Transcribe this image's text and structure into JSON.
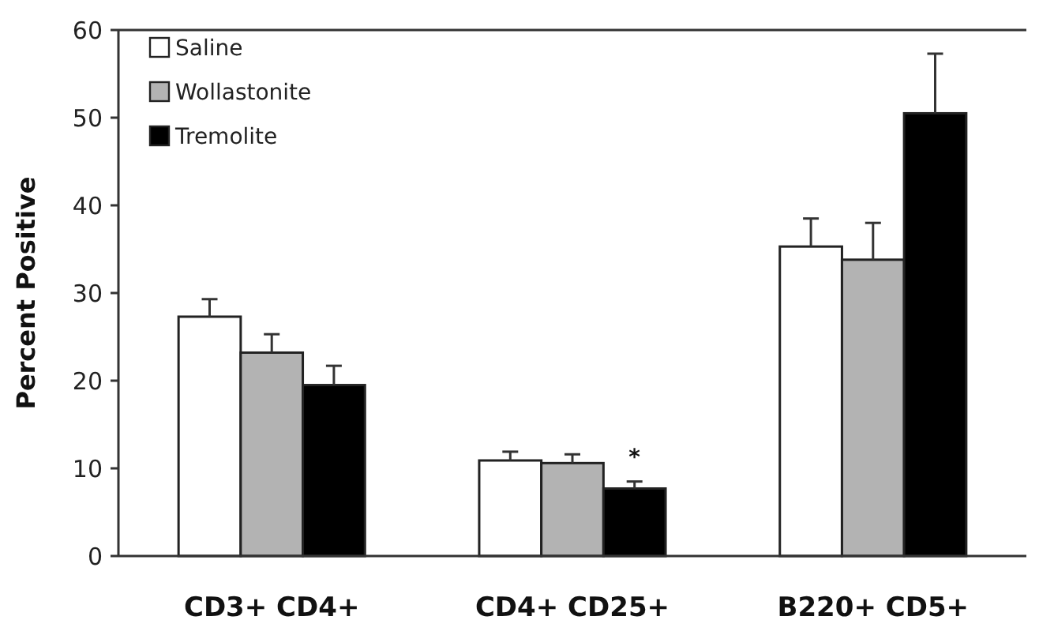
{
  "chart_data": {
    "type": "bar",
    "ylabel": "Percent Positive",
    "categories": [
      "CD3+ CD4+",
      "CD4+ CD25+",
      "B220+ CD5+"
    ],
    "series": [
      {
        "name": "Saline",
        "color": "#ffffff",
        "values": [
          27.3,
          10.9,
          35.3
        ],
        "errors": [
          2.0,
          1.0,
          3.2
        ]
      },
      {
        "name": "Wollastonite",
        "color": "#b3b3b3",
        "values": [
          23.2,
          10.6,
          33.8
        ],
        "errors": [
          2.1,
          1.0,
          4.2
        ]
      },
      {
        "name": "Tremolite",
        "color": "#000000",
        "values": [
          19.5,
          7.7,
          50.5
        ],
        "errors": [
          2.2,
          0.8,
          6.8
        ]
      }
    ],
    "annotations": [
      {
        "text": "*",
        "x": "CD4+ CD25+",
        "y": 12
      }
    ],
    "ylim": [
      0,
      60
    ],
    "yticks": [
      0,
      10,
      20,
      30,
      40,
      50,
      60
    ],
    "grid": false,
    "legend": "top left"
  }
}
